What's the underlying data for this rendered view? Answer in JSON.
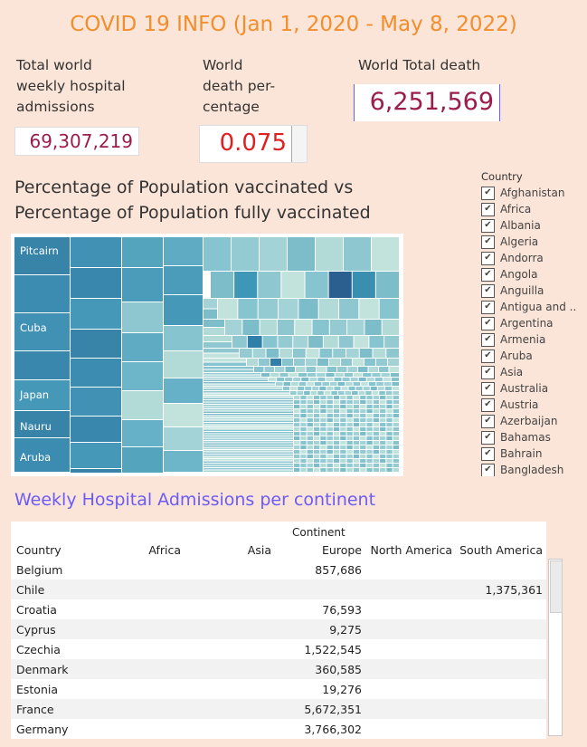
{
  "title": "COVID 19 INFO (Jan 1, 2020 - May 8, 2022)",
  "kpis": {
    "hospital": {
      "label_lines": [
        "Total world",
        "weekly hospital",
        "admissions"
      ],
      "value": "69,307,219",
      "color": "#9b1d4b"
    },
    "death_pct": {
      "label_lines": [
        "World",
        "death per-",
        "centage"
      ],
      "value": "0.075",
      "color": "#e02020"
    },
    "total_death": {
      "label": "World Total death",
      "value": "6,251,569",
      "color": "#9b1d4b"
    }
  },
  "vaccination": {
    "title_lines": [
      "Percentage of Population vaccinated vs",
      "Percentage of Population fully vaccinated"
    ],
    "treemap_labels": [
      "Pitcairn",
      "Cuba",
      "Japan",
      "Nauru",
      "Aruba"
    ]
  },
  "legend": {
    "title": "Country",
    "items": [
      "Afghanistan",
      "Africa",
      "Albania",
      "Algeria",
      "Andorra",
      "Angola",
      "Anguilla",
      "Antigua and ..",
      "Argentina",
      "Armenia",
      "Aruba",
      "Asia",
      "Australia",
      "Austria",
      "Azerbaijan",
      "Bahamas",
      "Bahrain",
      "Bangladesh"
    ]
  },
  "hospital_table": {
    "title": "Weekly Hospital Admissions per continent",
    "group_header": "Continent",
    "columns": [
      "Country",
      "Africa",
      "Asia",
      "Europe",
      "North America",
      "South America"
    ],
    "rows": [
      [
        "Belgium",
        "",
        "",
        "857,686",
        "",
        ""
      ],
      [
        "Chile",
        "",
        "",
        "",
        "",
        "1,375,361"
      ],
      [
        "Croatia",
        "",
        "",
        "76,593",
        "",
        ""
      ],
      [
        "Cyprus",
        "",
        "",
        "9,275",
        "",
        ""
      ],
      [
        "Czechia",
        "",
        "",
        "1,522,545",
        "",
        ""
      ],
      [
        "Denmark",
        "",
        "",
        "360,585",
        "",
        ""
      ],
      [
        "Estonia",
        "",
        "",
        "19,276",
        "",
        ""
      ],
      [
        "France",
        "",
        "",
        "5,672,351",
        "",
        ""
      ],
      [
        "Germany",
        "",
        "",
        "3,766,302",
        "",
        ""
      ]
    ]
  }
}
